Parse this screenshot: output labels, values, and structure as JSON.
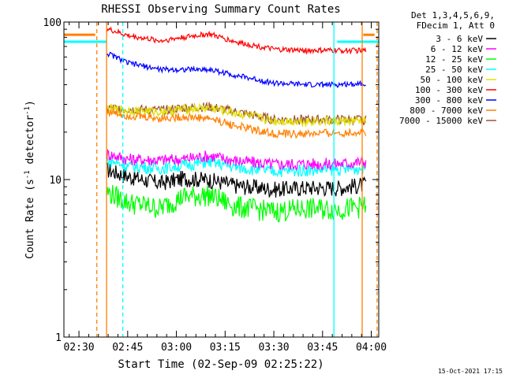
{
  "chart_data": {
    "type": "line",
    "title": "RHESSI Observing Summary Count Rates",
    "xlabel": "Start Time (02-Sep-09 02:25:22)",
    "ylabel_main": "Count Rate (s",
    "ylabel_sup": "-1",
    "ylabel_tail": " detector",
    "ylabel_sup2": "-1",
    "ylabel_end": ")",
    "yscale": "log",
    "ylim": [
      1,
      100
    ],
    "y_tick_labels": [
      "1",
      "10",
      "100"
    ],
    "x_tick_labels": [
      "02:30",
      "02:45",
      "03:00",
      "03:15",
      "03:30",
      "03:45",
      "04:00"
    ],
    "x_tick_minutes": [
      30,
      45,
      60,
      75,
      90,
      105,
      120
    ],
    "xlim_minutes": [
      25.37,
      122.3
    ],
    "legend": {
      "header1": "Det 1,3,4,5,6,9,",
      "header2": "FDecim 1, Att 0",
      "entries": [
        {
          "label": "3 - 6 keV",
          "color": "#000000"
        },
        {
          "label": "6 - 12 keV",
          "color": "#ff00ff"
        },
        {
          "label": "12 - 25 keV",
          "color": "#00ff00"
        },
        {
          "label": "25 - 50 keV",
          "color": "#00ffff"
        },
        {
          "label": "50 - 100 keV",
          "color": "#e0e000"
        },
        {
          "label": "100 - 300 keV",
          "color": "#ff0000"
        },
        {
          "label": "300 - 800 keV",
          "color": "#0000ff"
        },
        {
          "label": "800 - 7000 keV",
          "color": "#ff8000"
        },
        {
          "label": "7000 - 15000 keV",
          "color": "#a0522d"
        }
      ]
    },
    "series": [
      {
        "name": "3 - 6 keV",
        "color": "#000000",
        "x": [
          39,
          45,
          55,
          62,
          70,
          78,
          90,
          100,
          110,
          118
        ],
        "y": [
          11.5,
          10.5,
          9.5,
          10.2,
          10,
          9.2,
          8.7,
          8.9,
          8.9,
          9.3
        ]
      },
      {
        "name": "6 - 12 keV",
        "color": "#ff00ff",
        "x": [
          39,
          45,
          55,
          62,
          70,
          78,
          90,
          100,
          110,
          118
        ],
        "y": [
          14.5,
          13.5,
          13.3,
          13.5,
          14.2,
          13.2,
          12.5,
          12.6,
          12.6,
          13
        ]
      },
      {
        "name": "12 - 25 keV",
        "color": "#00ff00",
        "x": [
          39,
          45,
          55,
          62,
          70,
          78,
          90,
          100,
          110,
          118
        ],
        "y": [
          8.3,
          7.2,
          6.6,
          7.8,
          8,
          6.8,
          6.3,
          6.6,
          6.5,
          6.8
        ]
      },
      {
        "name": "25 - 50 keV",
        "color": "#00ffff",
        "x": [
          39,
          45,
          55,
          62,
          70,
          78,
          90,
          100,
          110,
          118
        ],
        "y": [
          13.2,
          12.2,
          11.8,
          12.3,
          13,
          12,
          11.3,
          11.5,
          11.6,
          11.8
        ]
      },
      {
        "name": "50 - 100 keV",
        "color": "#e0e000",
        "x": [
          39,
          45,
          55,
          62,
          70,
          78,
          90,
          100,
          110,
          118
        ],
        "y": [
          28,
          27.5,
          27,
          28,
          28.5,
          26.5,
          23.5,
          23.5,
          23.5,
          23.5
        ]
      },
      {
        "name": "100 - 300 keV",
        "color": "#ff0000",
        "x": [
          39,
          45,
          55,
          62,
          70,
          78,
          90,
          100,
          110,
          118
        ],
        "y": [
          90,
          82,
          76,
          80,
          84,
          75,
          67,
          66,
          66,
          66
        ]
      },
      {
        "name": "300 - 800 keV",
        "color": "#0000ff",
        "x": [
          39,
          45,
          55,
          62,
          70,
          78,
          90,
          100,
          110,
          118
        ],
        "y": [
          63,
          55,
          50,
          50,
          50,
          46,
          41,
          40,
          40,
          41
        ]
      },
      {
        "name": "800 - 7000 keV",
        "color": "#ff8000",
        "x": [
          39,
          45,
          55,
          62,
          70,
          78,
          90,
          100,
          110,
          118
        ],
        "y": [
          27,
          25.5,
          24.5,
          25,
          24.5,
          22,
          19.5,
          19.5,
          19.8,
          20
        ]
      },
      {
        "name": "7000 - 15000 keV",
        "color": "#a0522d",
        "x": [
          39,
          45,
          55,
          62,
          70,
          78,
          90,
          100,
          110,
          118
        ],
        "y": [
          28.5,
          28,
          27.5,
          28.5,
          29,
          27,
          24,
          24,
          24,
          24
        ]
      }
    ],
    "flat_segments": [
      {
        "color": "#00ffff",
        "y": 75,
        "x": [
          25.4,
          38.5
        ]
      },
      {
        "color": "#00ffff",
        "y": 75,
        "x": [
          109.5,
          122.3
        ]
      },
      {
        "color": "#ff8000",
        "y": 83,
        "x": [
          25.4,
          35
        ]
      },
      {
        "color": "#ff8000",
        "y": 83,
        "x": [
          117.5,
          121
        ]
      }
    ],
    "vertical_markers": [
      {
        "minute": 35.5,
        "color": "#ff8000",
        "style": "dashed"
      },
      {
        "minute": 38.5,
        "color": "#ff8000",
        "style": "solid"
      },
      {
        "minute": 43.5,
        "color": "#00ffff",
        "style": "dashed"
      },
      {
        "minute": 108.5,
        "color": "#00ffff",
        "style": "solid"
      },
      {
        "minute": 117.2,
        "color": "#ff8000",
        "style": "solid"
      },
      {
        "minute": 121.8,
        "color": "#ff8000",
        "style": "dashed"
      }
    ],
    "timestamp": "15-Oct-2021 17:15"
  }
}
